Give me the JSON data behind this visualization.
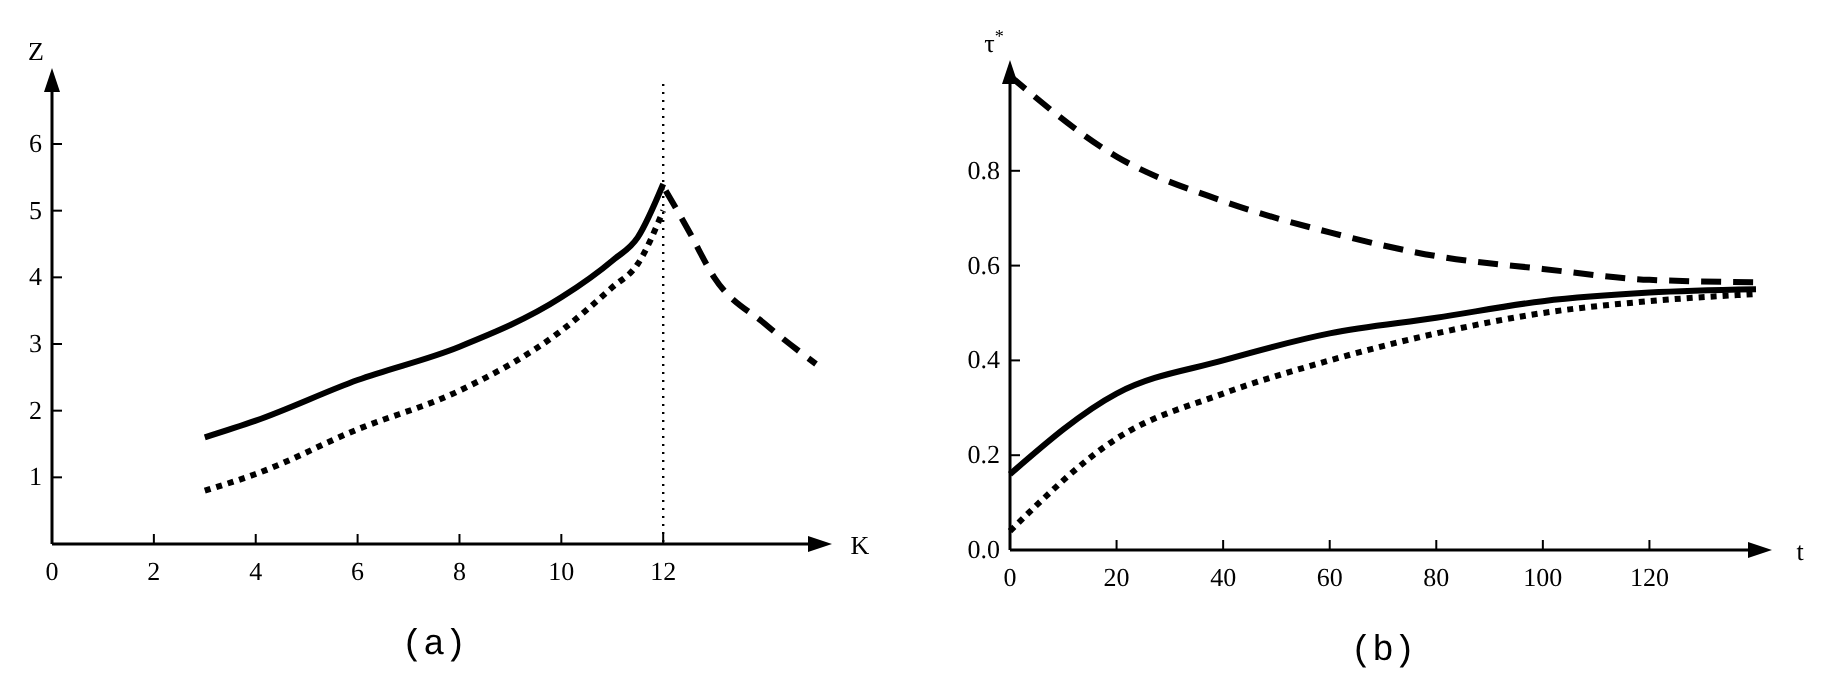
{
  "chart_data": [
    {
      "type": "line",
      "title": "(a)",
      "xlabel": "K",
      "ylabel": "Z",
      "xlim": [
        0,
        15
      ],
      "ylim": [
        0,
        6.9
      ],
      "xticks": [
        0,
        2,
        4,
        6,
        8,
        10,
        12
      ],
      "yticks": [
        1,
        2,
        3,
        4,
        5,
        6
      ],
      "grid": false,
      "ref_lines": [
        {
          "axis": "x",
          "value": 12,
          "line_style": "dotted",
          "color": "#000000"
        }
      ],
      "series": [
        {
          "color": "#000000",
          "line_style": "solid",
          "x": [
            3,
            4,
            6,
            8,
            10,
            11,
            11.5,
            12
          ],
          "values": [
            1.6,
            1.85,
            2.46,
            2.96,
            3.7,
            4.25,
            4.6,
            5.4
          ]
        },
        {
          "color": "#000000",
          "line_style": "dotted",
          "x": [
            3,
            4,
            6,
            8,
            10,
            11,
            11.5,
            12
          ],
          "values": [
            0.8,
            1.05,
            1.72,
            2.3,
            3.2,
            3.85,
            4.2,
            5.0
          ]
        },
        {
          "color": "#000000",
          "line_style": "dashed",
          "x": [
            12.05,
            12.5,
            13,
            14,
            15
          ],
          "values": [
            5.3,
            4.7,
            4.0,
            3.3,
            2.7
          ]
        }
      ]
    },
    {
      "type": "line",
      "title": "(b)",
      "xlabel": "t",
      "ylabel": "τ$^{*}$",
      "xlim": [
        0,
        140
      ],
      "ylim": [
        0,
        1.0
      ],
      "xticks": [
        0,
        20,
        40,
        60,
        80,
        100,
        120
      ],
      "yticks": [
        {
          "value": 0,
          "label": "0.0"
        },
        0.2,
        0.4,
        0.6,
        0.8
      ],
      "grid": false,
      "series": [
        {
          "color": "#000000",
          "line_style": "dashed",
          "x": [
            0,
            20,
            40,
            60,
            80,
            100,
            120,
            140
          ],
          "values": [
            1.0,
            0.83,
            0.736,
            0.67,
            0.62,
            0.593,
            0.57,
            0.565
          ]
        },
        {
          "color": "#000000",
          "line_style": "solid",
          "x": [
            0,
            20,
            40,
            60,
            80,
            100,
            120,
            140
          ],
          "values": [
            0.16,
            0.33,
            0.4,
            0.457,
            0.49,
            0.525,
            0.543,
            0.55
          ]
        },
        {
          "color": "#000000",
          "line_style": "dotted",
          "x": [
            0,
            20,
            40,
            60,
            80,
            100,
            120,
            140
          ],
          "values": [
            0.04,
            0.235,
            0.33,
            0.4,
            0.457,
            0.5,
            0.525,
            0.54
          ]
        }
      ]
    }
  ]
}
